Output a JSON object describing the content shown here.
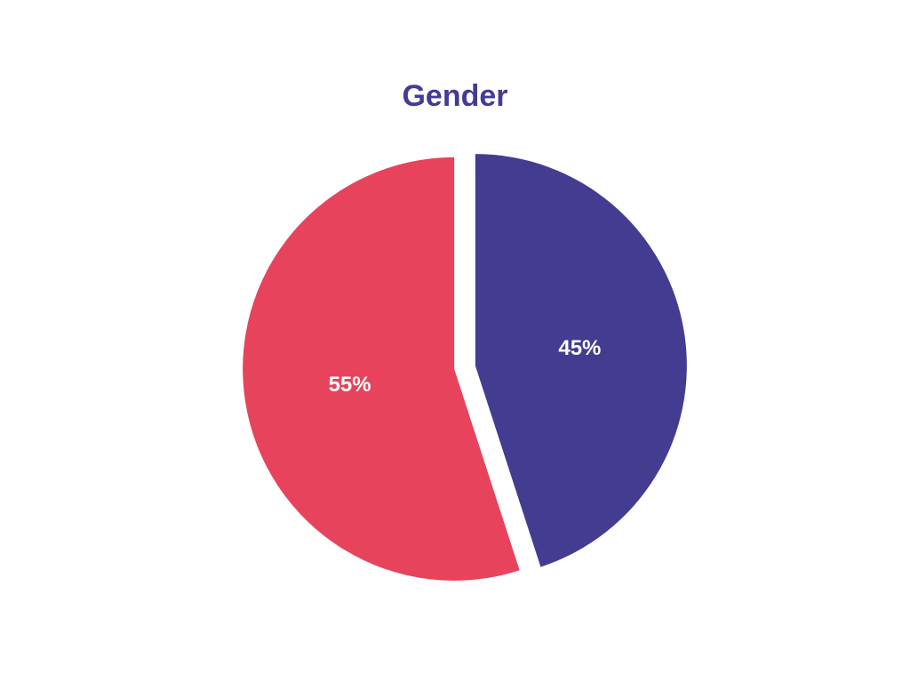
{
  "chart_data": {
    "type": "pie",
    "title": "Gender",
    "values": [
      45,
      55
    ],
    "value_labels": [
      "45%",
      "55%"
    ],
    "colors": [
      "#433c91",
      "#e8435c"
    ]
  }
}
